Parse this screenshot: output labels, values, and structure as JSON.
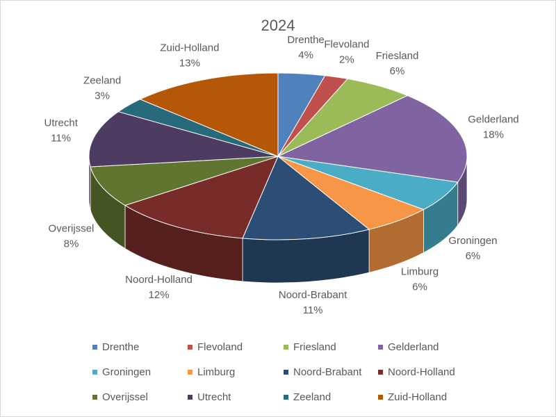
{
  "chart_data": {
    "type": "pie",
    "title": "2024",
    "categories": [
      "Drenthe",
      "Flevoland",
      "Friesland",
      "Gelderland",
      "Groningen",
      "Limburg",
      "Noord-Brabant",
      "Noord-Holland",
      "Overijssel",
      "Utrecht",
      "Zeeland",
      "Zuid-Holland"
    ],
    "values": [
      4,
      2,
      6,
      18,
      6,
      6,
      11,
      12,
      8,
      11,
      3,
      13
    ],
    "value_labels": [
      "4%",
      "2%",
      "6%",
      "18%",
      "6%",
      "6%",
      "11%",
      "12%",
      "8%",
      "11%",
      "3%",
      "13%"
    ],
    "colors": [
      "#4f81bd",
      "#c0504d",
      "#9bbb59",
      "#8064a2",
      "#4bacc6",
      "#f79646",
      "#2c4d75",
      "#772c2a",
      "#5f7530",
      "#4d3b62",
      "#276a7c",
      "#b65708"
    ],
    "legend": "bottom"
  }
}
